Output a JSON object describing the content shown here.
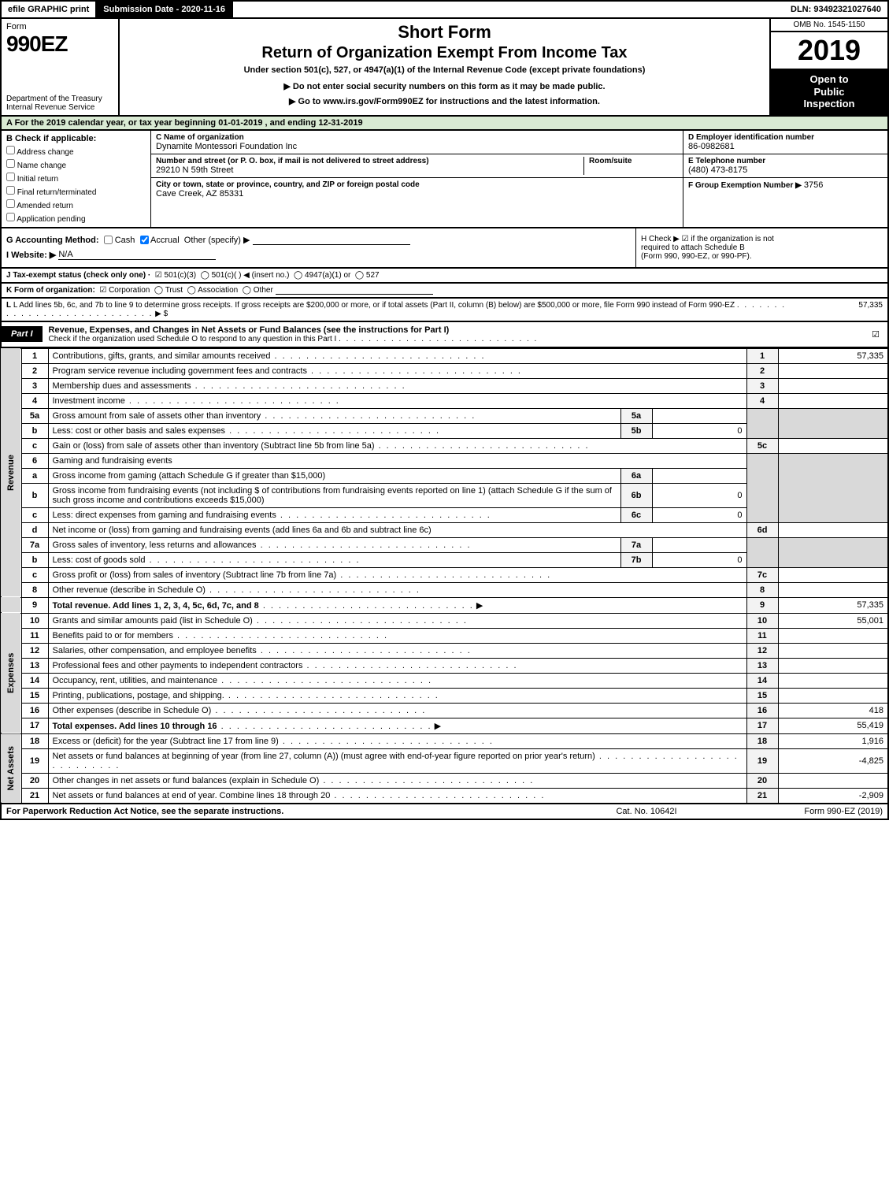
{
  "colors": {
    "black": "#000000",
    "white": "#ffffff",
    "green_tint": "#d9ead3",
    "grey_shade": "#d9d9d9",
    "light_grey": "#f3f3f3"
  },
  "typography": {
    "base_fontsize_pt": 8,
    "title_fontsize_pt": 16,
    "year_fontsize_pt": 28,
    "formnum_fontsize_pt": 22
  },
  "topbar": {
    "efile": "efile GRAPHIC print",
    "submission_date": "Submission Date - 2020-11-16",
    "dln": "DLN: 93492321027640"
  },
  "header": {
    "form_word": "Form",
    "form_number": "990EZ",
    "treasury1": "Department of the Treasury",
    "treasury2": "Internal Revenue Service",
    "short_form": "Short Form",
    "return_title": "Return of Organization Exempt From Income Tax",
    "under_section": "Under section 501(c), 527, or 4947(a)(1) of the Internal Revenue Code (except private foundations)",
    "no_enter": "▶ Do not enter social security numbers on this form as it may be made public.",
    "goto": "▶ Go to www.irs.gov/Form990EZ for instructions and the latest information.",
    "omb": "OMB No. 1545-1150",
    "year": "2019",
    "open1": "Open to",
    "open2": "Public",
    "open3": "Inspection"
  },
  "rowA": "A For the 2019 calendar year, or tax year beginning 01-01-2019 , and ending 12-31-2019",
  "boxB": {
    "label": "B Check if applicable:",
    "items": [
      "Address change",
      "Name change",
      "Initial return",
      "Final return/terminated",
      "Amended return",
      "Application pending"
    ]
  },
  "boxC": {
    "name_label": "C Name of organization",
    "name": "Dynamite Montessori Foundation Inc",
    "street_label": "Number and street (or P. O. box, if mail is not delivered to street address)",
    "room_label": "Room/suite",
    "street": "29210 N 59th Street",
    "city_label": "City or town, state or province, country, and ZIP or foreign postal code",
    "city": "Cave Creek, AZ  85331"
  },
  "boxD": {
    "label": "D Employer identification number",
    "value": "86-0982681"
  },
  "boxE": {
    "label": "E Telephone number",
    "value": "(480) 473-8175"
  },
  "boxF": {
    "label": "F Group Exemption Number  ▶",
    "value": "3756"
  },
  "rowG": {
    "label": "G Accounting Method:",
    "cash": "Cash",
    "accrual": "Accrual",
    "other": "Other (specify) ▶",
    "accrual_checked": true
  },
  "rowH": {
    "text1": "H  Check ▶ ☑ if the organization is not",
    "text2": "required to attach Schedule B",
    "text3": "(Form 990, 990-EZ, or 990-PF)."
  },
  "rowI": {
    "label": "I Website: ▶",
    "value": "N/A"
  },
  "rowJ": {
    "label": "J Tax-exempt status (check only one) ·",
    "opt1": "☑ 501(c)(3)",
    "opt2": "◯ 501(c)(   ) ◀ (insert no.)",
    "opt3": "◯ 4947(a)(1) or",
    "opt4": "◯ 527"
  },
  "rowK": {
    "label": "K Form of organization:",
    "corp": "☑ Corporation",
    "trust": "◯ Trust",
    "assoc": "◯ Association",
    "other": "◯ Other"
  },
  "rowL": {
    "text": "L Add lines 5b, 6c, and 7b to line 9 to determine gross receipts. If gross receipts are $200,000 or more, or if total assets (Part II, column (B) below) are $500,000 or more, file Form 990 instead of Form 990-EZ",
    "arrow": "▶ $",
    "value": "57,335"
  },
  "part1": {
    "tag": "Part I",
    "title": "Revenue, Expenses, and Changes in Net Assets or Fund Balances (see the instructions for Part I)",
    "sub": "Check if the organization used Schedule O to respond to any question in this Part I",
    "checked": "☑"
  },
  "side_labels": {
    "revenue": "Revenue",
    "expenses": "Expenses",
    "netassets": "Net Assets"
  },
  "lines": {
    "l1": {
      "n": "1",
      "d": "Contributions, gifts, grants, and similar amounts received",
      "num": "1",
      "amt": "57,335"
    },
    "l2": {
      "n": "2",
      "d": "Program service revenue including government fees and contracts",
      "num": "2",
      "amt": ""
    },
    "l3": {
      "n": "3",
      "d": "Membership dues and assessments",
      "num": "3",
      "amt": ""
    },
    "l4": {
      "n": "4",
      "d": "Investment income",
      "num": "4",
      "amt": ""
    },
    "l5a": {
      "n": "5a",
      "d": "Gross amount from sale of assets other than inventory",
      "sub": "5a",
      "subv": ""
    },
    "l5b": {
      "n": "b",
      "d": "Less: cost or other basis and sales expenses",
      "sub": "5b",
      "subv": "0"
    },
    "l5c": {
      "n": "c",
      "d": "Gain or (loss) from sale of assets other than inventory (Subtract line 5b from line 5a)",
      "num": "5c",
      "amt": ""
    },
    "l6": {
      "n": "6",
      "d": "Gaming and fundraising events"
    },
    "l6a": {
      "n": "a",
      "d": "Gross income from gaming (attach Schedule G if greater than $15,000)",
      "sub": "6a",
      "subv": ""
    },
    "l6b": {
      "n": "b",
      "d": "Gross income from fundraising events (not including $             of contributions from fundraising events reported on line 1) (attach Schedule G if the sum of such gross income and contributions exceeds $15,000)",
      "sub": "6b",
      "subv": "0"
    },
    "l6c": {
      "n": "c",
      "d": "Less: direct expenses from gaming and fundraising events",
      "sub": "6c",
      "subv": "0"
    },
    "l6d": {
      "n": "d",
      "d": "Net income or (loss) from gaming and fundraising events (add lines 6a and 6b and subtract line 6c)",
      "num": "6d",
      "amt": ""
    },
    "l7a": {
      "n": "7a",
      "d": "Gross sales of inventory, less returns and allowances",
      "sub": "7a",
      "subv": ""
    },
    "l7b": {
      "n": "b",
      "d": "Less: cost of goods sold",
      "sub": "7b",
      "subv": "0"
    },
    "l7c": {
      "n": "c",
      "d": "Gross profit or (loss) from sales of inventory (Subtract line 7b from line 7a)",
      "num": "7c",
      "amt": ""
    },
    "l8": {
      "n": "8",
      "d": "Other revenue (describe in Schedule O)",
      "num": "8",
      "amt": ""
    },
    "l9": {
      "n": "9",
      "d": "Total revenue. Add lines 1, 2, 3, 4, 5c, 6d, 7c, and 8",
      "num": "9",
      "amt": "57,335",
      "arrow": "▶"
    },
    "l10": {
      "n": "10",
      "d": "Grants and similar amounts paid (list in Schedule O)",
      "num": "10",
      "amt": "55,001"
    },
    "l11": {
      "n": "11",
      "d": "Benefits paid to or for members",
      "num": "11",
      "amt": ""
    },
    "l12": {
      "n": "12",
      "d": "Salaries, other compensation, and employee benefits",
      "num": "12",
      "amt": ""
    },
    "l13": {
      "n": "13",
      "d": "Professional fees and other payments to independent contractors",
      "num": "13",
      "amt": ""
    },
    "l14": {
      "n": "14",
      "d": "Occupancy, rent, utilities, and maintenance",
      "num": "14",
      "amt": ""
    },
    "l15": {
      "n": "15",
      "d": "Printing, publications, postage, and shipping.",
      "num": "15",
      "amt": ""
    },
    "l16": {
      "n": "16",
      "d": "Other expenses (describe in Schedule O)",
      "num": "16",
      "amt": "418"
    },
    "l17": {
      "n": "17",
      "d": "Total expenses. Add lines 10 through 16",
      "num": "17",
      "amt": "55,419",
      "arrow": "▶"
    },
    "l18": {
      "n": "18",
      "d": "Excess or (deficit) for the year (Subtract line 17 from line 9)",
      "num": "18",
      "amt": "1,916"
    },
    "l19": {
      "n": "19",
      "d": "Net assets or fund balances at beginning of year (from line 27, column (A)) (must agree with end-of-year figure reported on prior year's return)",
      "num": "19",
      "amt": "-4,825"
    },
    "l20": {
      "n": "20",
      "d": "Other changes in net assets or fund balances (explain in Schedule O)",
      "num": "20",
      "amt": ""
    },
    "l21": {
      "n": "21",
      "d": "Net assets or fund balances at end of year. Combine lines 18 through 20",
      "num": "21",
      "amt": "-2,909"
    }
  },
  "footer": {
    "left": "For Paperwork Reduction Act Notice, see the separate instructions.",
    "center": "Cat. No. 10642I",
    "right": "Form 990-EZ (2019)"
  }
}
